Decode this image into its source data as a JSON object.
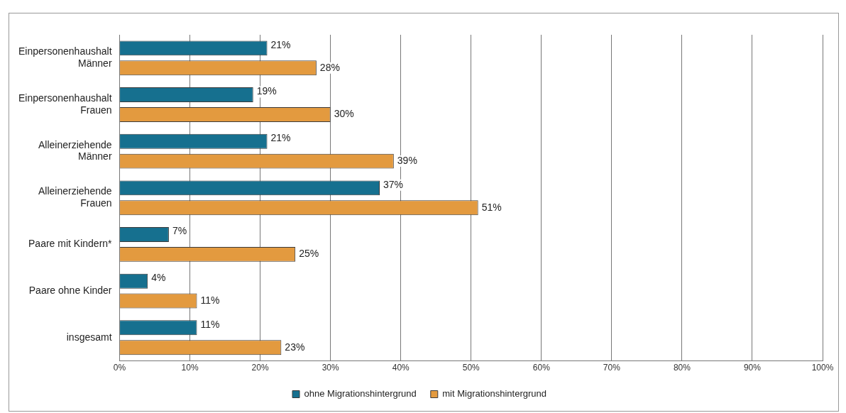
{
  "chart_data": {
    "type": "bar",
    "orientation": "horizontal",
    "categories": [
      "Einpersonenhaushalt\nMänner",
      "Einpersonenhaushalt\nFrauen",
      "Alleinerziehende\nMänner",
      "Alleinerziehende\nFrauen",
      "Paare mit Kindern*",
      "Paare ohne Kinder",
      "insgesamt"
    ],
    "series": [
      {
        "name": "ohne Migrationshintergrund",
        "color": "#16708f",
        "values": [
          21,
          19,
          21,
          37,
          7,
          4,
          11
        ],
        "value_labels": [
          "21%",
          "19%",
          "21%",
          "37%",
          "7%",
          "4%",
          "11%"
        ]
      },
      {
        "name": "mit Migrationshintergrund",
        "color": "#e39a3f",
        "values": [
          28,
          30,
          39,
          51,
          25,
          11,
          23
        ],
        "value_labels": [
          "28%",
          "30%",
          "39%",
          "51%",
          "25%",
          "11%",
          "23%"
        ]
      }
    ],
    "xlim": [
      0,
      100
    ],
    "xticks": [
      {
        "value": 0,
        "label": "0%"
      },
      {
        "value": 10,
        "label": "10%"
      },
      {
        "value": 20,
        "label": "20%"
      },
      {
        "value": 30,
        "label": "30%"
      },
      {
        "value": 40,
        "label": "40%"
      },
      {
        "value": 50,
        "label": "50%"
      },
      {
        "value": 60,
        "label": "60%"
      },
      {
        "value": 70,
        "label": "70%"
      },
      {
        "value": 80,
        "label": "80%"
      },
      {
        "value": 90,
        "label": "90%"
      },
      {
        "value": 100,
        "label": "100%"
      }
    ],
    "grid": "x",
    "legend": "bottom"
  }
}
